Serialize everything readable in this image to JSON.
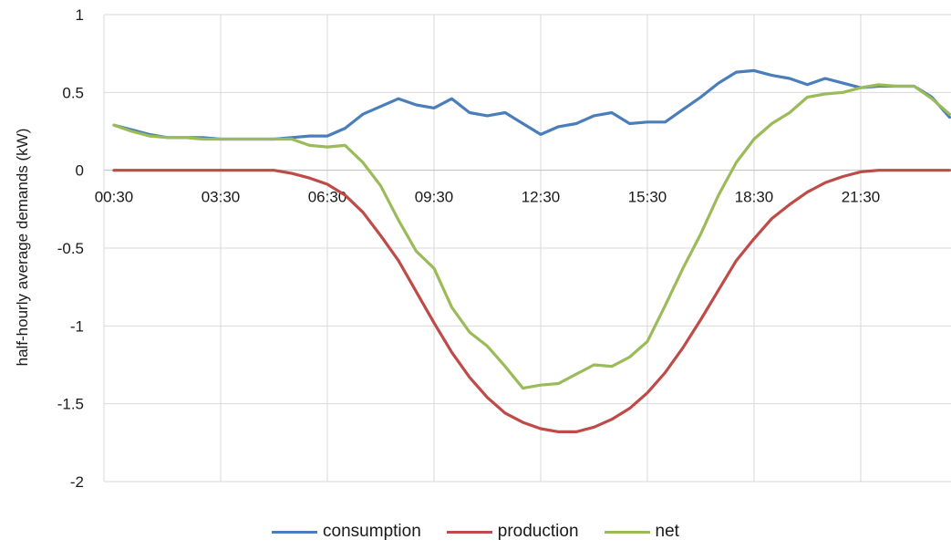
{
  "chart_data": {
    "type": "line",
    "title": "",
    "xlabel": "",
    "ylabel": "half-hourly average demands (kW)",
    "ylim": [
      -2,
      1
    ],
    "yticks": [
      1,
      0.5,
      0,
      -0.5,
      -1,
      -1.5,
      -2
    ],
    "ytick_labels": [
      "1",
      "0.5",
      "0",
      "-0.5",
      "-1",
      "-1.5",
      "-2"
    ],
    "xticks": [
      "00:30",
      "03:30",
      "06:30",
      "09:30",
      "12:30",
      "15:30",
      "18:30",
      "21:30"
    ],
    "x_count": 48,
    "grid": true,
    "legend_position": "bottom",
    "series": [
      {
        "name": "consumption",
        "color": "#4a7ebb",
        "values": [
          0.29,
          0.26,
          0.23,
          0.21,
          0.21,
          0.21,
          0.2,
          0.2,
          0.2,
          0.2,
          0.21,
          0.22,
          0.22,
          0.27,
          0.36,
          0.41,
          0.46,
          0.42,
          0.4,
          0.46,
          0.37,
          0.35,
          0.37,
          0.3,
          0.23,
          0.28,
          0.3,
          0.35,
          0.37,
          0.3,
          0.31,
          0.31,
          0.39,
          0.47,
          0.56,
          0.63,
          0.64,
          0.61,
          0.59,
          0.55,
          0.59,
          0.56,
          0.53,
          0.54,
          0.54,
          0.54,
          0.47,
          0.34
        ]
      },
      {
        "name": "production",
        "color": "#be4b48",
        "values": [
          0,
          0,
          0,
          0,
          0,
          0,
          0,
          0,
          0,
          0,
          -0.02,
          -0.05,
          -0.09,
          -0.16,
          -0.27,
          -0.42,
          -0.58,
          -0.78,
          -0.98,
          -1.17,
          -1.33,
          -1.46,
          -1.56,
          -1.62,
          -1.66,
          -1.68,
          -1.68,
          -1.65,
          -1.6,
          -1.53,
          -1.43,
          -1.3,
          -1.14,
          -0.96,
          -0.77,
          -0.58,
          -0.44,
          -0.31,
          -0.22,
          -0.14,
          -0.08,
          -0.04,
          -0.01,
          0,
          0,
          0,
          0,
          0
        ]
      },
      {
        "name": "net",
        "color": "#9bbb59",
        "values": [
          0.29,
          0.25,
          0.22,
          0.21,
          0.21,
          0.2,
          0.2,
          0.2,
          0.2,
          0.2,
          0.2,
          0.16,
          0.15,
          0.16,
          0.05,
          -0.1,
          -0.32,
          -0.52,
          -0.63,
          -0.88,
          -1.04,
          -1.13,
          -1.26,
          -1.4,
          -1.38,
          -1.37,
          -1.31,
          -1.25,
          -1.26,
          -1.2,
          -1.1,
          -0.87,
          -0.63,
          -0.41,
          -0.16,
          0.05,
          0.2,
          0.3,
          0.37,
          0.47,
          0.49,
          0.5,
          0.53,
          0.55,
          0.54,
          0.54,
          0.46,
          0.36
        ]
      }
    ]
  }
}
